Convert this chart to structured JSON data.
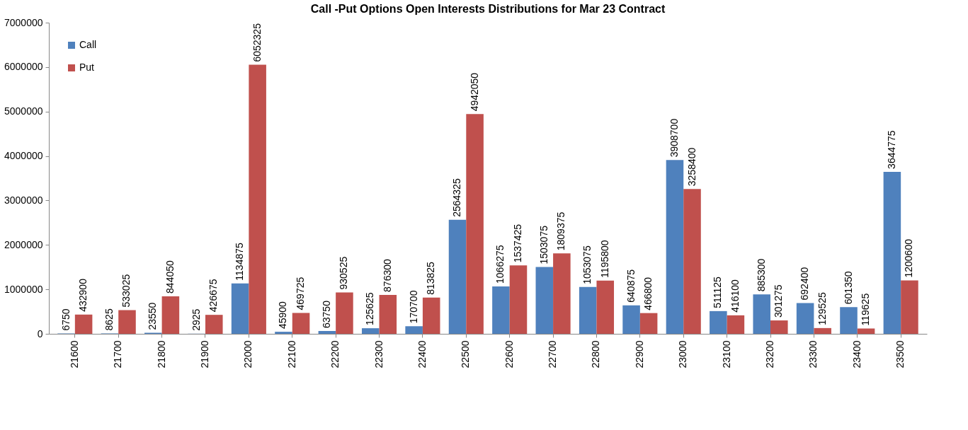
{
  "chart_data": {
    "type": "bar",
    "title": "Call -Put Options Open Interests Distributions for Mar 23 Contract",
    "categories": [
      "21600",
      "21700",
      "21800",
      "21900",
      "22000",
      "22100",
      "22200",
      "22300",
      "22400",
      "22500",
      "22600",
      "22700",
      "22800",
      "22900",
      "23000",
      "23100",
      "23200",
      "23300",
      "23400",
      "23500"
    ],
    "series": [
      {
        "name": "Call",
        "color": "#4f81bd",
        "values": [
          6750,
          8625,
          23550,
          2925,
          1134875,
          45900,
          63750,
          125625,
          170700,
          2564325,
          1066275,
          1503075,
          1053075,
          640875,
          3908700,
          511125,
          885300,
          692400,
          601350,
          3644775
        ]
      },
      {
        "name": "Put",
        "color": "#c0504d",
        "values": [
          432900,
          533025,
          844050,
          426675,
          6052325,
          469725,
          930525,
          876300,
          813825,
          4942050,
          1537425,
          1809375,
          1195800,
          466800,
          3258400,
          416100,
          301275,
          129525,
          119625,
          1200600
        ]
      }
    ],
    "ylim": [
      0,
      7000000
    ],
    "yticks": [
      0,
      1000000,
      2000000,
      3000000,
      4000000,
      5000000,
      6000000,
      7000000
    ],
    "grid": false,
    "legend": "top left",
    "data_labels": true
  }
}
